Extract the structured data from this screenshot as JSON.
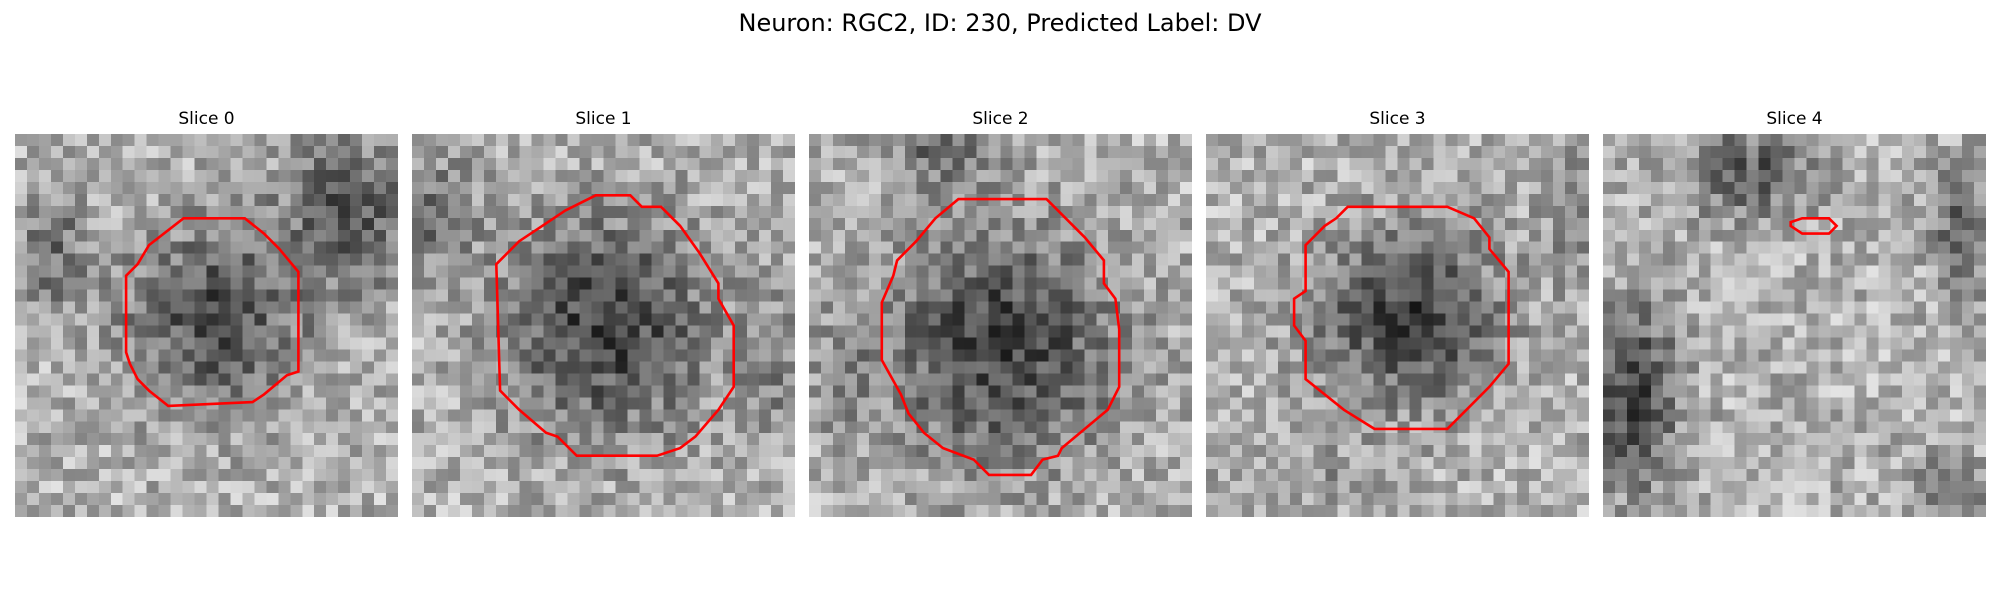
{
  "figure": {
    "title": "Neuron: RGC2, ID: 230, Predicted Label: DV"
  },
  "colors": {
    "contour": "#ff0000",
    "background": "#ffffff"
  },
  "panels": [
    {
      "title": "Slice 0",
      "seed": 11,
      "blobs": [
        [
          0.52,
          0.48,
          0.3,
          0.3,
          0.4
        ],
        [
          0.88,
          0.2,
          0.22,
          0.25,
          0.35
        ],
        [
          0.1,
          0.3,
          0.12,
          0.2,
          0.25
        ]
      ],
      "contour": [
        [
          0.44,
          0.22
        ],
        [
          0.6,
          0.22
        ],
        [
          0.65,
          0.26
        ],
        [
          0.69,
          0.3
        ],
        [
          0.74,
          0.36
        ],
        [
          0.74,
          0.62
        ],
        [
          0.71,
          0.63
        ],
        [
          0.65,
          0.68
        ],
        [
          0.62,
          0.7
        ],
        [
          0.4,
          0.71
        ],
        [
          0.35,
          0.67
        ],
        [
          0.32,
          0.64
        ],
        [
          0.3,
          0.6
        ],
        [
          0.29,
          0.57
        ],
        [
          0.29,
          0.37
        ],
        [
          0.32,
          0.34
        ],
        [
          0.35,
          0.29
        ]
      ]
    },
    {
      "title": "Slice 1",
      "seed": 23,
      "blobs": [
        [
          0.51,
          0.5,
          0.34,
          0.35,
          0.45
        ],
        [
          0.95,
          0.6,
          0.1,
          0.2,
          0.2
        ],
        [
          0.05,
          0.2,
          0.15,
          0.2,
          0.25
        ]
      ],
      "contour": [
        [
          0.4,
          0.2
        ],
        [
          0.48,
          0.16
        ],
        [
          0.57,
          0.16
        ],
        [
          0.6,
          0.19
        ],
        [
          0.65,
          0.19
        ],
        [
          0.7,
          0.24
        ],
        [
          0.75,
          0.31
        ],
        [
          0.8,
          0.39
        ],
        [
          0.8,
          0.43
        ],
        [
          0.84,
          0.5
        ],
        [
          0.84,
          0.66
        ],
        [
          0.8,
          0.72
        ],
        [
          0.74,
          0.79
        ],
        [
          0.7,
          0.82
        ],
        [
          0.64,
          0.84
        ],
        [
          0.43,
          0.84
        ],
        [
          0.38,
          0.79
        ],
        [
          0.35,
          0.78
        ],
        [
          0.28,
          0.72
        ],
        [
          0.23,
          0.67
        ],
        [
          0.22,
          0.34
        ],
        [
          0.28,
          0.28
        ],
        [
          0.34,
          0.24
        ]
      ]
    },
    {
      "title": "Slice 2",
      "seed": 37,
      "blobs": [
        [
          0.5,
          0.55,
          0.38,
          0.38,
          0.45
        ],
        [
          0.08,
          0.65,
          0.1,
          0.2,
          0.15
        ],
        [
          0.35,
          0.05,
          0.2,
          0.1,
          0.25
        ]
      ],
      "contour": [
        [
          0.39,
          0.17
        ],
        [
          0.62,
          0.17
        ],
        [
          0.69,
          0.24
        ],
        [
          0.72,
          0.27
        ],
        [
          0.77,
          0.33
        ],
        [
          0.77,
          0.39
        ],
        [
          0.8,
          0.43
        ],
        [
          0.81,
          0.51
        ],
        [
          0.81,
          0.66
        ],
        [
          0.78,
          0.72
        ],
        [
          0.72,
          0.77
        ],
        [
          0.66,
          0.82
        ],
        [
          0.65,
          0.84
        ],
        [
          0.61,
          0.85
        ],
        [
          0.58,
          0.89
        ],
        [
          0.47,
          0.89
        ],
        [
          0.43,
          0.85
        ],
        [
          0.35,
          0.82
        ],
        [
          0.3,
          0.78
        ],
        [
          0.26,
          0.73
        ],
        [
          0.24,
          0.68
        ],
        [
          0.19,
          0.59
        ],
        [
          0.19,
          0.44
        ],
        [
          0.22,
          0.37
        ],
        [
          0.23,
          0.33
        ],
        [
          0.28,
          0.28
        ],
        [
          0.33,
          0.22
        ]
      ]
    },
    {
      "title": "Slice 3",
      "seed": 53,
      "blobs": [
        [
          0.53,
          0.48,
          0.3,
          0.28,
          0.45
        ],
        [
          0.97,
          0.2,
          0.1,
          0.2,
          0.25
        ],
        [
          0.3,
          0.9,
          0.25,
          0.1,
          0.1
        ]
      ],
      "contour": [
        [
          0.37,
          0.19
        ],
        [
          0.63,
          0.19
        ],
        [
          0.7,
          0.22
        ],
        [
          0.74,
          0.27
        ],
        [
          0.74,
          0.3
        ],
        [
          0.79,
          0.36
        ],
        [
          0.79,
          0.6
        ],
        [
          0.74,
          0.66
        ],
        [
          0.69,
          0.71
        ],
        [
          0.63,
          0.77
        ],
        [
          0.44,
          0.77
        ],
        [
          0.36,
          0.72
        ],
        [
          0.26,
          0.64
        ],
        [
          0.26,
          0.54
        ],
        [
          0.23,
          0.5
        ],
        [
          0.23,
          0.43
        ],
        [
          0.26,
          0.41
        ],
        [
          0.26,
          0.29
        ],
        [
          0.31,
          0.24
        ],
        [
          0.34,
          0.22
        ]
      ]
    },
    {
      "title": "Slice 4",
      "seed": 71,
      "blobs": [
        [
          0.08,
          0.68,
          0.14,
          0.3,
          0.45
        ],
        [
          0.38,
          0.1,
          0.22,
          0.14,
          0.35
        ],
        [
          0.94,
          0.25,
          0.1,
          0.2,
          0.3
        ],
        [
          0.9,
          0.92,
          0.12,
          0.1,
          0.3
        ]
      ],
      "contour": [
        [
          0.49,
          0.23
        ],
        [
          0.52,
          0.22
        ],
        [
          0.59,
          0.22
        ],
        [
          0.61,
          0.24
        ],
        [
          0.59,
          0.26
        ],
        [
          0.52,
          0.26
        ],
        [
          0.49,
          0.24
        ]
      ]
    }
  ]
}
